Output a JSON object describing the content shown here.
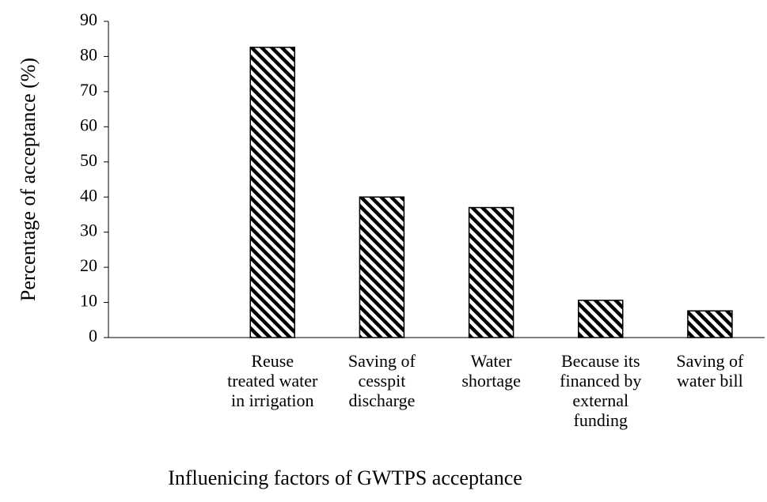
{
  "chart_data": {
    "type": "bar",
    "xlabel": "Influenicing factors of GWTPS acceptance",
    "ylabel": "Percentage of acceptance (%)",
    "categories": [
      null,
      "Reuse treated water in irrigation",
      "Saving of cesspit discharge",
      "Water shortage",
      "Because its financed by external funding",
      "Saving of water bill"
    ],
    "values": [
      null,
      82.6,
      40,
      37,
      10.6,
      7.6
    ],
    "color": "#000000",
    "ylim": [
      0,
      90
    ],
    "yticks": [
      0,
      10,
      20,
      30,
      40,
      50,
      60,
      70,
      80,
      90
    ],
    "grid": false
  }
}
